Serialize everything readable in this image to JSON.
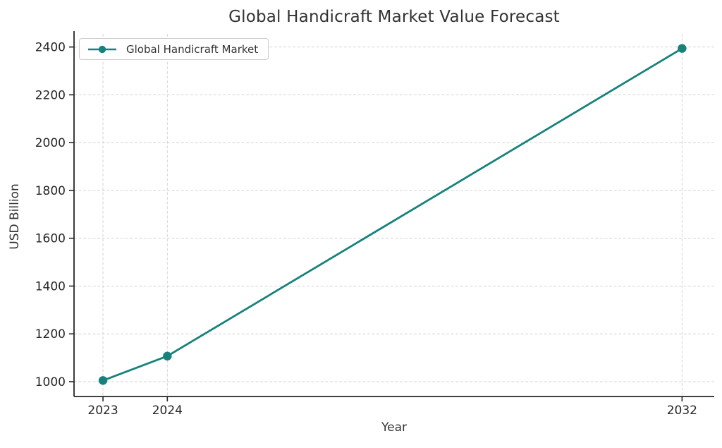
{
  "chart_data": {
    "type": "line",
    "title": "Global Handicraft Market Value Forecast",
    "xlabel": "Year",
    "ylabel": "USD Billion",
    "x": [
      2023,
      2024,
      2032
    ],
    "series": [
      {
        "name": "Global Handicraft Market",
        "color": "#17827b",
        "values": [
          1005,
          1107,
          2394
        ]
      }
    ],
    "x_ticks": [
      2023,
      2024,
      2032
    ],
    "y_ticks": [
      1000,
      1200,
      1400,
      1600,
      1800,
      2000,
      2200,
      2400
    ],
    "xlim": [
      2022.55,
      2032.5
    ],
    "ylim": [
      938,
      2455
    ],
    "grid": true,
    "legend_position": "upper-left",
    "colors": {
      "grid": "#d4d4d4",
      "axis": "#262626",
      "tick_text": "#262626",
      "text": "#333333",
      "background": "#ffffff"
    }
  }
}
